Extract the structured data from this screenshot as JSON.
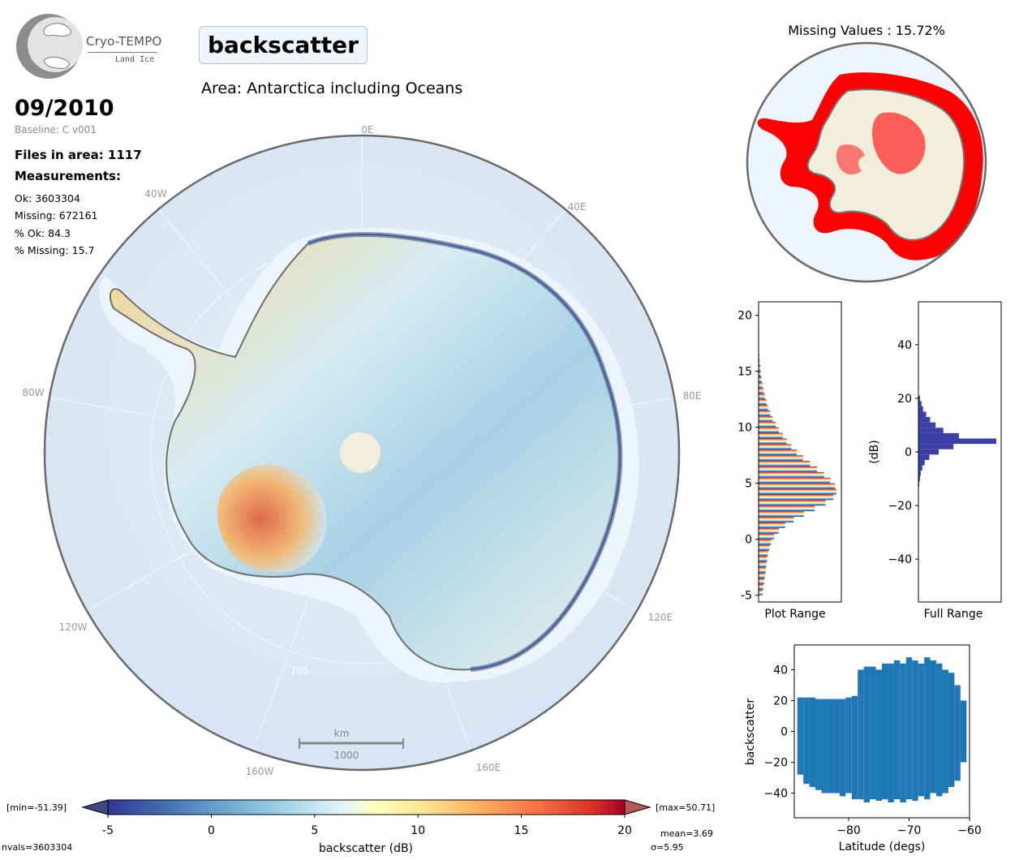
{
  "logo": {
    "title": "Cryo-TEMPO",
    "subtitle": "Land Ice"
  },
  "header": {
    "parameter": "backscatter",
    "area": "Area: Antarctica including Oceans",
    "date": "09/2010",
    "baseline": "Baseline: C v001",
    "files": "Files in area: 1117",
    "measurements_label": "Measurements:",
    "ok": "Ok: 3603304",
    "missing": "Missing: 672161",
    "pct_ok": "% Ok: 84.3",
    "pct_missing": "% Missing: 15.7"
  },
  "main_map": {
    "lon_labels": [
      "0E",
      "40E",
      "80E",
      "120E",
      "160E",
      "160W",
      "120W",
      "80W",
      "40W"
    ],
    "lat_label": "70S",
    "scale_unit": "km",
    "scale_value": "1000"
  },
  "missing_map": {
    "title": "Missing Values : 15.72%"
  },
  "colorbar": {
    "ticks": [
      "-5",
      "0",
      "5",
      "10",
      "15",
      "20"
    ],
    "label": "backscatter (dB)",
    "min_label": "[min=-51.39]",
    "max_label": "[max=50.71]",
    "nvals": "nvals=3603304",
    "mean": "mean=3.69",
    "sigma": "σ=5.95"
  },
  "chart_data": [
    {
      "type": "bar",
      "orientation": "horizontal",
      "xlabel": "Plot Range",
      "ylabel": "",
      "ylim": [
        -5.6,
        21.2
      ],
      "yticks": [
        "-5",
        "0",
        "5",
        "10",
        "15",
        "20"
      ],
      "bins": [
        -5,
        -4.5,
        -4,
        -3.5,
        -3,
        -2.5,
        -2,
        -1.5,
        -1,
        -0.5,
        0,
        0.5,
        1,
        1.5,
        2,
        2.5,
        3,
        3.5,
        4,
        4.5,
        5,
        5.5,
        6,
        6.5,
        7,
        7.5,
        8,
        8.5,
        9,
        9.5,
        10,
        10.5,
        11,
        11.5,
        12,
        12.5,
        13,
        13.5,
        14,
        14.5,
        15,
        15.5,
        16,
        16.5,
        17
      ],
      "values": [
        0.05,
        0.06,
        0.07,
        0.08,
        0.09,
        0.1,
        0.11,
        0.12,
        0.14,
        0.16,
        0.2,
        0.26,
        0.34,
        0.45,
        0.58,
        0.72,
        0.86,
        0.96,
        1.0,
        0.98,
        0.92,
        0.84,
        0.75,
        0.66,
        0.57,
        0.49,
        0.42,
        0.36,
        0.31,
        0.26,
        0.22,
        0.18,
        0.15,
        0.12,
        0.1,
        0.08,
        0.065,
        0.05,
        0.04,
        0.03,
        0.022,
        0.016,
        0.01,
        0.006,
        0.003
      ]
    },
    {
      "type": "bar",
      "orientation": "horizontal",
      "xlabel": "Full Range",
      "ylabel": "(dB)",
      "ylim": [
        -56,
        56
      ],
      "yticks": [
        "40",
        "20",
        "0",
        "−20",
        "−40"
      ],
      "bins": [
        -12,
        -10,
        -8,
        -6,
        -4,
        -2,
        0,
        2,
        4,
        6,
        8,
        10,
        12,
        14,
        16,
        18,
        20
      ],
      "values": [
        0.01,
        0.02,
        0.03,
        0.05,
        0.08,
        0.14,
        0.26,
        0.45,
        1.0,
        0.52,
        0.32,
        0.22,
        0.15,
        0.1,
        0.06,
        0.04,
        0.02
      ]
    },
    {
      "type": "scatter",
      "xlabel": "Latitude (degs)",
      "ylabel": "backscatter",
      "xlim": [
        -89,
        -60
      ],
      "ylim": [
        -56,
        56
      ],
      "xticks": [
        "−80",
        "−70",
        "−60"
      ],
      "yticks": [
        "40",
        "20",
        "0",
        "−20",
        "−40"
      ],
      "color": "#1f77b4",
      "x": [
        -88,
        -87,
        -86,
        -85,
        -84,
        -83,
        -82,
        -81,
        -80,
        -79,
        -78,
        -77,
        -76,
        -75,
        -74,
        -73,
        -72,
        -71,
        -70,
        -69,
        -68,
        -67,
        -66,
        -65,
        -64,
        -63,
        -62,
        -61
      ],
      "y_min": [
        -28,
        -34,
        -36,
        -38,
        -40,
        -40,
        -40,
        -42,
        -40,
        -44,
        -44,
        -46,
        -44,
        -45,
        -44,
        -46,
        -44,
        -46,
        -44,
        -45,
        -42,
        -44,
        -40,
        -42,
        -40,
        -36,
        -32,
        -20
      ],
      "y_max": [
        22,
        22,
        22,
        21,
        21,
        21,
        21,
        21,
        22,
        23,
        40,
        42,
        42,
        40,
        44,
        44,
        46,
        44,
        48,
        46,
        44,
        48,
        46,
        44,
        40,
        38,
        30,
        20
      ]
    }
  ],
  "colors": {
    "missing": "#ff0000",
    "ocean": "#dde9f6",
    "land": "#f2eedc",
    "histogram_full": "#3a3fa6",
    "scatter": "#1f77b4"
  }
}
